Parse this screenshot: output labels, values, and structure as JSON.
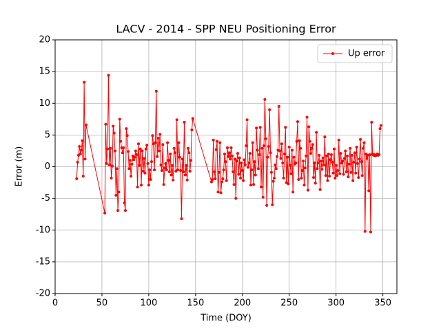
{
  "chart_data": {
    "type": "line",
    "title": "LACV - 2014 - SPP NEU Positioning Error",
    "x_label": "Time (DOY)",
    "y_label": "Error (m)",
    "xlim": [
      0,
      365
    ],
    "xticks": [
      0,
      50,
      100,
      150,
      200,
      250,
      300,
      350
    ],
    "ylim": [
      -20,
      20
    ],
    "yticks": [
      -20,
      -15,
      -10,
      -5,
      0,
      5,
      10,
      15,
      20
    ],
    "grid": true,
    "legend": "upper right",
    "x": [
      23,
      24,
      25,
      26,
      27,
      28,
      29,
      30,
      31,
      32,
      33,
      53,
      54,
      55,
      56,
      57,
      58,
      59,
      60,
      61,
      62,
      63,
      64,
      65,
      66,
      67,
      68,
      69,
      70,
      71,
      72,
      73,
      74,
      75,
      76,
      77,
      78,
      79,
      80,
      81,
      82,
      83,
      84,
      85,
      86,
      87,
      88,
      89,
      90,
      91,
      92,
      93,
      94,
      95,
      96,
      97,
      98,
      99,
      100,
      101,
      102,
      103,
      104,
      105,
      106,
      107,
      108,
      109,
      110,
      111,
      112,
      113,
      114,
      115,
      116,
      117,
      118,
      119,
      120,
      121,
      122,
      123,
      124,
      125,
      126,
      127,
      128,
      129,
      130,
      131,
      132,
      133,
      134,
      135,
      136,
      137,
      138,
      139,
      140,
      141,
      142,
      143,
      144,
      145,
      146,
      147,
      167,
      168,
      169,
      170,
      171,
      172,
      173,
      174,
      175,
      176,
      177,
      178,
      179,
      180,
      181,
      182,
      183,
      184,
      185,
      186,
      187,
      188,
      189,
      190,
      191,
      192,
      193,
      194,
      195,
      196,
      197,
      198,
      199,
      200,
      201,
      202,
      203,
      204,
      205,
      206,
      207,
      208,
      209,
      210,
      211,
      212,
      213,
      214,
      215,
      216,
      217,
      218,
      219,
      220,
      221,
      222,
      223,
      224,
      225,
      226,
      227,
      228,
      229,
      230,
      231,
      232,
      233,
      234,
      235,
      236,
      237,
      238,
      239,
      240,
      241,
      242,
      243,
      244,
      245,
      246,
      247,
      248,
      249,
      250,
      251,
      252,
      253,
      254,
      255,
      256,
      257,
      258,
      259,
      260,
      261,
      262,
      263,
      264,
      265,
      266,
      267,
      268,
      269,
      270,
      271,
      272,
      273,
      274,
      275,
      276,
      277,
      278,
      279,
      280,
      281,
      282,
      283,
      284,
      285,
      286,
      287,
      288,
      289,
      290,
      291,
      292,
      293,
      294,
      295,
      296,
      297,
      298,
      299,
      300,
      301,
      302,
      303,
      304,
      305,
      306,
      307,
      308,
      309,
      310,
      311,
      312,
      313,
      314,
      315,
      316,
      317,
      318,
      319,
      320,
      321,
      322,
      323,
      324,
      325,
      326,
      327,
      328,
      329,
      330,
      331,
      332,
      333,
      334,
      335,
      336,
      337,
      338,
      339,
      340,
      341,
      342,
      343,
      344,
      345,
      346,
      347,
      348
    ],
    "series": [
      {
        "name": "Up error",
        "color": "#ff0000",
        "values": [
          -1.9,
          0.7,
          1.8,
          3.2,
          2.0,
          2.6,
          4.1,
          -1.5,
          13.3,
          1.2,
          6.6,
          -7.3,
          6.7,
          0.5,
          2.8,
          14.4,
          0.3,
          2.9,
          -1.8,
          0.1,
          6.4,
          5.3,
          2.5,
          -4.5,
          -0.3,
          -6.9,
          -4.0,
          7.5,
          4.0,
          3.0,
          2.2,
          3.0,
          -5.7,
          -6.9,
          6.0,
          4.9,
          2.4,
          -0.3,
          1.0,
          -1.5,
          0.4,
          1.7,
          1.1,
          1.5,
          2.5,
          1.9,
          -3.2,
          3.6,
          0.2,
          2.8,
          -2.9,
          2.5,
          -0.7,
          1.3,
          -1.0,
          2.8,
          3.4,
          0.5,
          -2.9,
          -0.5,
          -2.0,
          0.8,
          4.9,
          3.6,
          -0.5,
          3.8,
          11.9,
          1.6,
          4.5,
          2.5,
          5.1,
          0.3,
          -0.6,
          3.5,
          -2.8,
          -0.2,
          0.5,
          -0.5,
          3.8,
          1.0,
          -0.8,
          2.0,
          -1.3,
          0.2,
          -2.1,
          2.9,
          2.2,
          -0.7,
          7.4,
          -0.5,
          3.8,
          1.5,
          -0.6,
          -8.2,
          1.2,
          -0.8,
          7.0,
          -1.3,
          0.2,
          -2.1,
          2.9,
          2.2,
          -0.7,
          1.0,
          5.8,
          7.6,
          -2.4,
          -2.0,
          4.2,
          -0.8,
          -1.9,
          2.7,
          4.0,
          -4.0,
          -0.9,
          3.8,
          -4.1,
          -2.4,
          -1.9,
          -0.5,
          2.0,
          0.8,
          -2.2,
          3.0,
          1.6,
          2.2,
          1.2,
          3.0,
          1.7,
          -0.8,
          -2.8,
          1.2,
          -5.0,
          0.9,
          2.1,
          -1.2,
          1.4,
          -1.8,
          0.6,
          -0.6,
          -2.2,
          1.1,
          0.3,
          3.3,
          7.4,
          -0.1,
          0.6,
          2.1,
          -2.9,
          -0.5,
          3.8,
          -2.8,
          0.8,
          -1.3,
          6.1,
          2.6,
          -0.3,
          1.9,
          6.2,
          -3.2,
          2.9,
          -4.8,
          3.3,
          10.6,
          4.4,
          -6.1,
          1.5,
          3.2,
          9.0,
          2.2,
          -0.9,
          -6.0,
          -2.3,
          -1.8,
          0.3,
          -0.3,
          1.6,
          2.6,
          9.5,
          2.5,
          1.3,
          3.6,
          0.6,
          -1.8,
          2.0,
          6.2,
          -2.5,
          1.5,
          -2.7,
          3.1,
          0.2,
          -1.1,
          2.6,
          -4.0,
          1.5,
          0.4,
          0.6,
          4.0,
          7.1,
          -2.0,
          4.1,
          2.9,
          -1.8,
          -0.6,
          0.9,
          -2.9,
          -0.2,
          1.7,
          7.8,
          -3.7,
          6.3,
          4.0,
          2.1,
          2.9,
          3.5,
          -1.7,
          0.6,
          -2.6,
          5.4,
          -0.3,
          0.6,
          1.8,
          -3.6,
          0.9,
          -0.4,
          1.4,
          0.3,
          4.7,
          -1.4,
          1.7,
          -2.2,
          2.0,
          -1.5,
          1.1,
          1.9,
          0.7,
          -1.0,
          2.8,
          -1.8,
          0.2,
          -1.4,
          -0.6,
          4.2,
          -1.1,
          2.1,
          0.6,
          0.9,
          -1.2,
          1.3,
          2.5,
          -0.8,
          1.7,
          -1.6,
          0.4,
          2.9,
          -0.9,
          1.8,
          -2.2,
          0.7,
          2.2,
          -1.0,
          3.1,
          0.5,
          -1.7,
          1.2,
          4.3,
          0.8,
          -1.4,
          2.9,
          3.8,
          -10.2,
          2.0,
          1.3,
          1.8,
          -3.8,
          1.9,
          -10.3,
          7.0,
          2.0,
          1.8,
          1.9,
          1.7,
          1.8,
          2.0,
          1.8,
          1.9,
          6.0,
          6.5
        ]
      }
    ]
  }
}
